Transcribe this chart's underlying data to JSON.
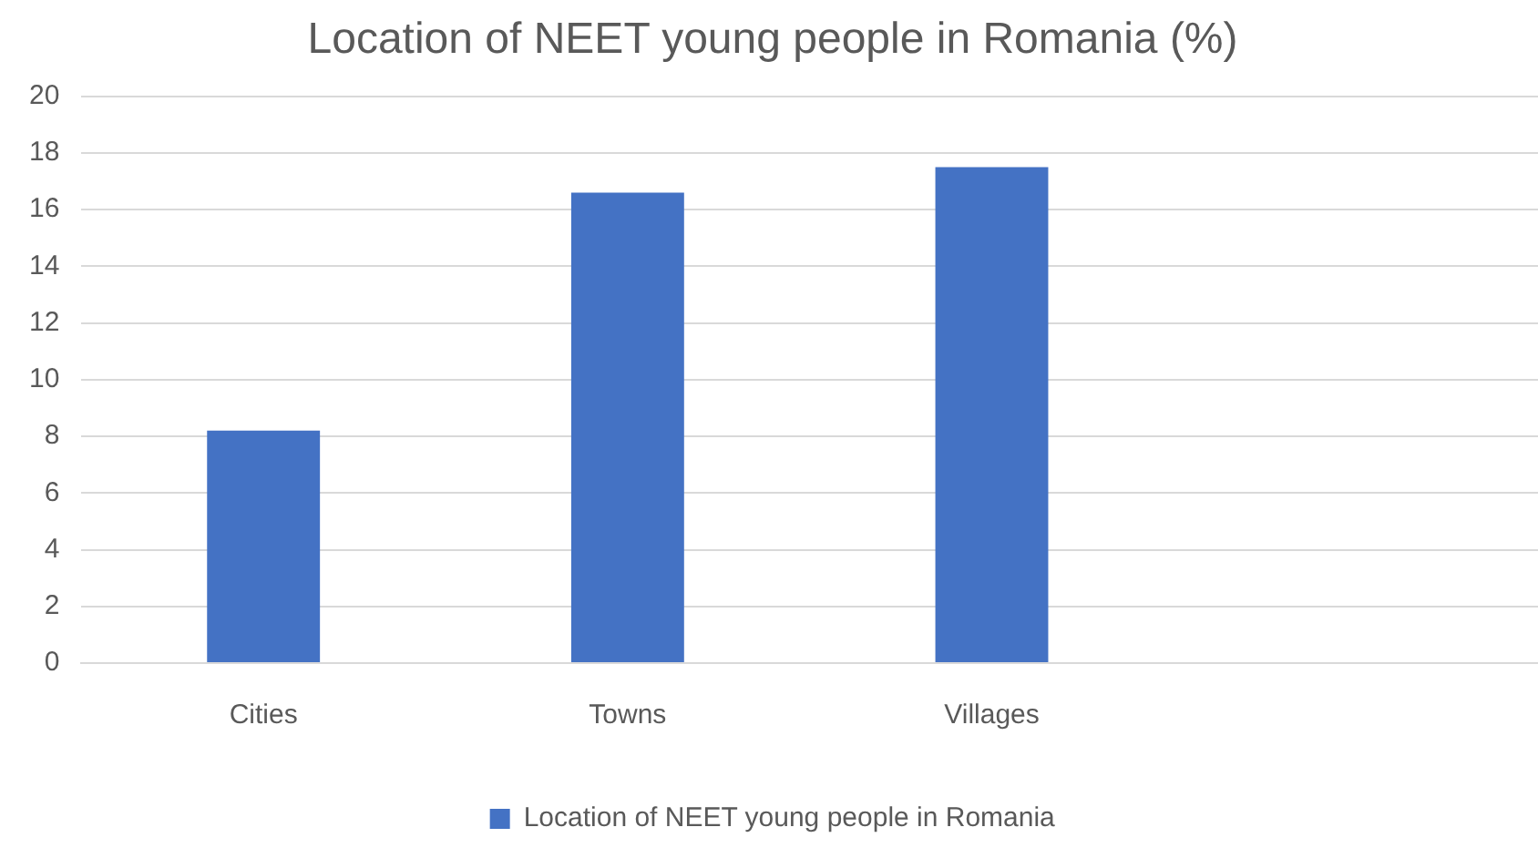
{
  "chart_data": {
    "type": "bar",
    "title": "Location of NEET young people in Romania (%)",
    "categories": [
      "Cities",
      "Towns",
      "Villages",
      null
    ],
    "series": [
      {
        "name": "Location of NEET young people in Romania",
        "color": "#4472c4",
        "values": [
          8.2,
          16.6,
          17.5,
          null
        ]
      }
    ],
    "ylim": [
      0,
      20
    ],
    "yticks": [
      0,
      2,
      4,
      6,
      8,
      10,
      12,
      14,
      16,
      18,
      20
    ],
    "grid": "y",
    "legend": "bottom"
  }
}
